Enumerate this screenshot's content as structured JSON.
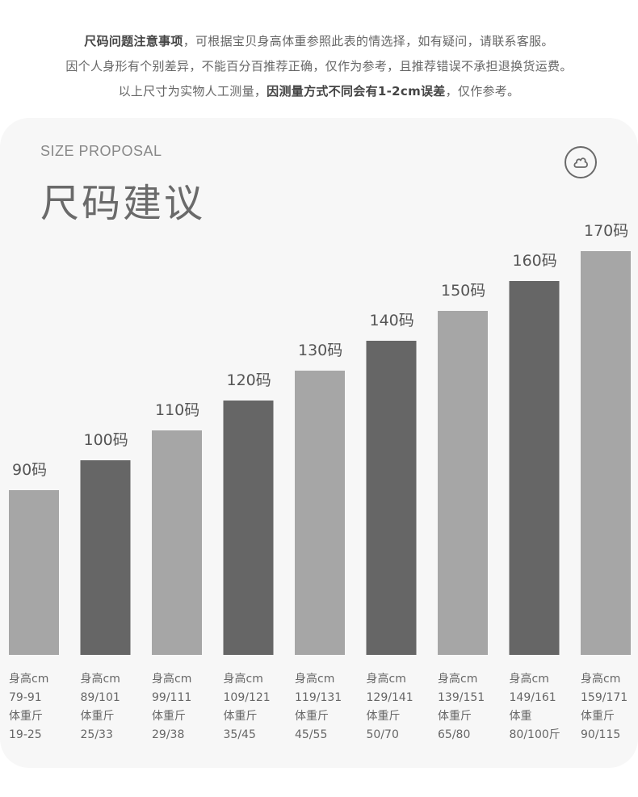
{
  "notice": {
    "line1_bold": "尺码问题注意事项",
    "line1_rest": "，可根据宝贝身高体重参照此表的情选择，如有疑问，请联系客服。",
    "line2": "因个人身形有个别差异，不能百分百推荐正确，仅作为参考，且推荐错误不承担退换货运费。",
    "line3_pre": "以上尺寸为实物人工测量，",
    "line3_bold": "因测量方式不同会有1-2cm误差",
    "line3_post": "，仅作参考。"
  },
  "header": {
    "subtitle": "SIZE PROPOSAL",
    "title": "尺码建议",
    "logo_icon": "cloud-circle-icon"
  },
  "colors": {
    "light_bar": "#a6a6a6",
    "dark_bar": "#666666",
    "card_bg": "#f7f7f7"
  },
  "chart_data": {
    "type": "bar",
    "categories": [
      "90码",
      "100码",
      "110码",
      "120码",
      "130码",
      "140码",
      "150码",
      "160码",
      "170码"
    ],
    "values": [
      90,
      100,
      110,
      120,
      130,
      140,
      150,
      160,
      170
    ],
    "bar_shades": [
      "light",
      "dark",
      "light",
      "dark",
      "light",
      "dark",
      "light",
      "dark",
      "light"
    ],
    "ylim": [
      0,
      170
    ],
    "details": [
      {
        "height_label": "身高cm",
        "height": "79-91",
        "weight_label": "体重斤",
        "weight": "19-25"
      },
      {
        "height_label": "身高cm",
        "height": "89/101",
        "weight_label": "体重斤",
        "weight": "25/33"
      },
      {
        "height_label": "身高cm",
        "height": "99/111",
        "weight_label": "体重斤",
        "weight": "29/38"
      },
      {
        "height_label": "身高cm",
        "height": "109/121",
        "weight_label": "体重斤",
        "weight": "35/45"
      },
      {
        "height_label": "身高cm",
        "height": "119/131",
        "weight_label": "体重斤",
        "weight": "45/55"
      },
      {
        "height_label": "身高cm",
        "height": "129/141",
        "weight_label": "体重斤",
        "weight": "50/70"
      },
      {
        "height_label": "身高cm",
        "height": "139/151",
        "weight_label": "体重斤",
        "weight": "65/80"
      },
      {
        "height_label": "身高cm",
        "height": "149/161",
        "weight_label": "体重",
        "weight": "80/100斤"
      },
      {
        "height_label": "身高cm",
        "height": "159/171",
        "weight_label": "体重斤",
        "weight": "90/115"
      }
    ]
  }
}
